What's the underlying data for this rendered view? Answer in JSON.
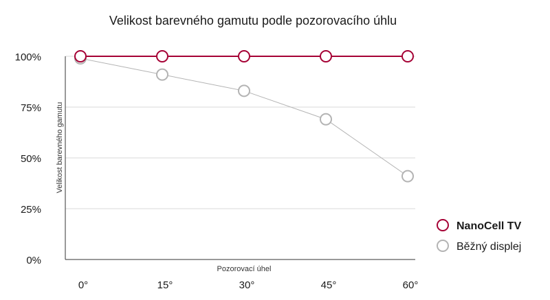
{
  "chart_data": {
    "type": "line",
    "title": "Velikost barevného gamutu podle pozorovacího úhlu",
    "xlabel": "Pozorovací úhel",
    "ylabel": "Velikost barevného gamutu",
    "categories": [
      "0°",
      "15°",
      "30°",
      "45°",
      "60°"
    ],
    "x": [
      0,
      15,
      30,
      45,
      60
    ],
    "y_ticks": [
      "0%",
      "25%",
      "50%",
      "75%",
      "100%"
    ],
    "ylim": [
      0,
      100
    ],
    "grid": true,
    "legend_position": "right",
    "series": [
      {
        "name": "NanoCell TV",
        "values": [
          100,
          100,
          100,
          100,
          100
        ],
        "color": "#a50034",
        "bold": true
      },
      {
        "name": "Běžný displej",
        "values": [
          99,
          91,
          83,
          69,
          41
        ],
        "color": "#b3b3b3",
        "bold": false
      }
    ]
  }
}
